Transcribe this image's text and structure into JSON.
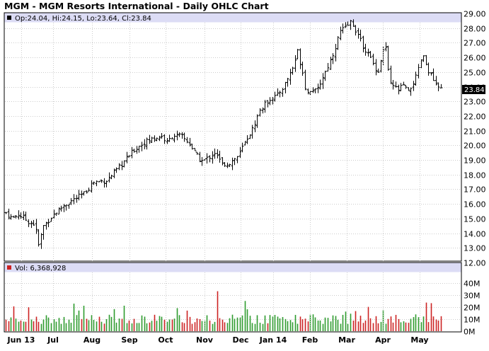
{
  "title": "MGM - MGM Resorts International - Daily OHLC Chart",
  "price_legend": "Op:24.04, Hi:24.15, Lo:23.64, Cl:23.84",
  "volume_legend": "Vol: 6,368,928",
  "last_price_label": "23.84",
  "colors": {
    "band": "#dcdcf5",
    "grid": "#cccccc",
    "bars": "#000000",
    "vol_up": "#2e9b2e",
    "vol_down": "#cc2222",
    "last_bg": "#000000"
  },
  "chart_data": {
    "type": "ohlc",
    "price_axis": {
      "ylim": [
        12,
        29
      ],
      "ticks": [
        "12.00",
        "13.00",
        "14.00",
        "15.00",
        "16.00",
        "17.00",
        "18.00",
        "19.00",
        "20.00",
        "21.00",
        "22.00",
        "23.00",
        "24.00",
        "25.00",
        "26.00",
        "27.00",
        "28.00",
        "29.00"
      ]
    },
    "volume_axis": {
      "ylim": [
        0,
        45
      ],
      "unit": "M",
      "ticks": [
        "0M",
        "10M",
        "20M",
        "30M",
        "40M"
      ]
    },
    "months": [
      "Jun 13",
      "Jul",
      "Aug",
      "Sep",
      "Oct",
      "Nov",
      "Dec",
      "Jan 14",
      "Feb",
      "Mar",
      "Apr",
      "May"
    ],
    "close_series": [
      {
        "d": 0,
        "v": 15.4
      },
      {
        "d": 5,
        "v": 15.0
      },
      {
        "d": 10,
        "v": 15.3
      },
      {
        "d": 18,
        "v": 14.8
      },
      {
        "d": 23,
        "v": 14.6
      },
      {
        "d": 26,
        "v": 13.2
      },
      {
        "d": 30,
        "v": 14.5
      },
      {
        "d": 38,
        "v": 15.3
      },
      {
        "d": 46,
        "v": 15.9
      },
      {
        "d": 54,
        "v": 16.3
      },
      {
        "d": 62,
        "v": 16.7
      },
      {
        "d": 70,
        "v": 17.5
      },
      {
        "d": 80,
        "v": 17.6
      },
      {
        "d": 88,
        "v": 18.3
      },
      {
        "d": 95,
        "v": 19.0
      },
      {
        "d": 102,
        "v": 19.7
      },
      {
        "d": 110,
        "v": 20.2
      },
      {
        "d": 118,
        "v": 20.5
      },
      {
        "d": 124,
        "v": 20.6
      },
      {
        "d": 128,
        "v": 20.2
      },
      {
        "d": 133,
        "v": 20.7
      },
      {
        "d": 140,
        "v": 20.6
      },
      {
        "d": 146,
        "v": 20.1
      },
      {
        "d": 150,
        "v": 19.5
      },
      {
        "d": 155,
        "v": 18.9
      },
      {
        "d": 160,
        "v": 19.1
      },
      {
        "d": 166,
        "v": 19.5
      },
      {
        "d": 172,
        "v": 18.7
      },
      {
        "d": 178,
        "v": 18.8
      },
      {
        "d": 185,
        "v": 19.3
      },
      {
        "d": 190,
        "v": 20.2
      },
      {
        "d": 196,
        "v": 21.1
      },
      {
        "d": 202,
        "v": 22.4
      },
      {
        "d": 210,
        "v": 23.2
      },
      {
        "d": 216,
        "v": 23.4
      },
      {
        "d": 222,
        "v": 24.2
      },
      {
        "d": 228,
        "v": 25.3
      },
      {
        "d": 232,
        "v": 26.4
      },
      {
        "d": 236,
        "v": 25.0
      },
      {
        "d": 239,
        "v": 23.5
      },
      {
        "d": 243,
        "v": 23.9
      },
      {
        "d": 247,
        "v": 23.6
      },
      {
        "d": 251,
        "v": 24.5
      },
      {
        "d": 255,
        "v": 25.2
      },
      {
        "d": 259,
        "v": 26.0
      },
      {
        "d": 263,
        "v": 27.0
      },
      {
        "d": 266,
        "v": 27.8
      },
      {
        "d": 270,
        "v": 28.0
      },
      {
        "d": 274,
        "v": 28.4
      },
      {
        "d": 277,
        "v": 28.1
      },
      {
        "d": 281,
        "v": 27.3
      },
      {
        "d": 285,
        "v": 26.6
      },
      {
        "d": 289,
        "v": 26.1
      },
      {
        "d": 293,
        "v": 25.4
      },
      {
        "d": 296,
        "v": 25.0
      },
      {
        "d": 299,
        "v": 26.3
      },
      {
        "d": 302,
        "v": 26.7
      },
      {
        "d": 305,
        "v": 24.2
      },
      {
        "d": 308,
        "v": 24.0
      },
      {
        "d": 312,
        "v": 23.8
      },
      {
        "d": 316,
        "v": 24.1
      },
      {
        "d": 320,
        "v": 23.6
      },
      {
        "d": 324,
        "v": 24.3
      },
      {
        "d": 327,
        "v": 24.8
      },
      {
        "d": 331,
        "v": 26.2
      },
      {
        "d": 335,
        "v": 25.3
      },
      {
        "d": 339,
        "v": 24.6
      },
      {
        "d": 343,
        "v": 23.9
      },
      {
        "d": 346,
        "v": 23.84
      }
    ]
  }
}
